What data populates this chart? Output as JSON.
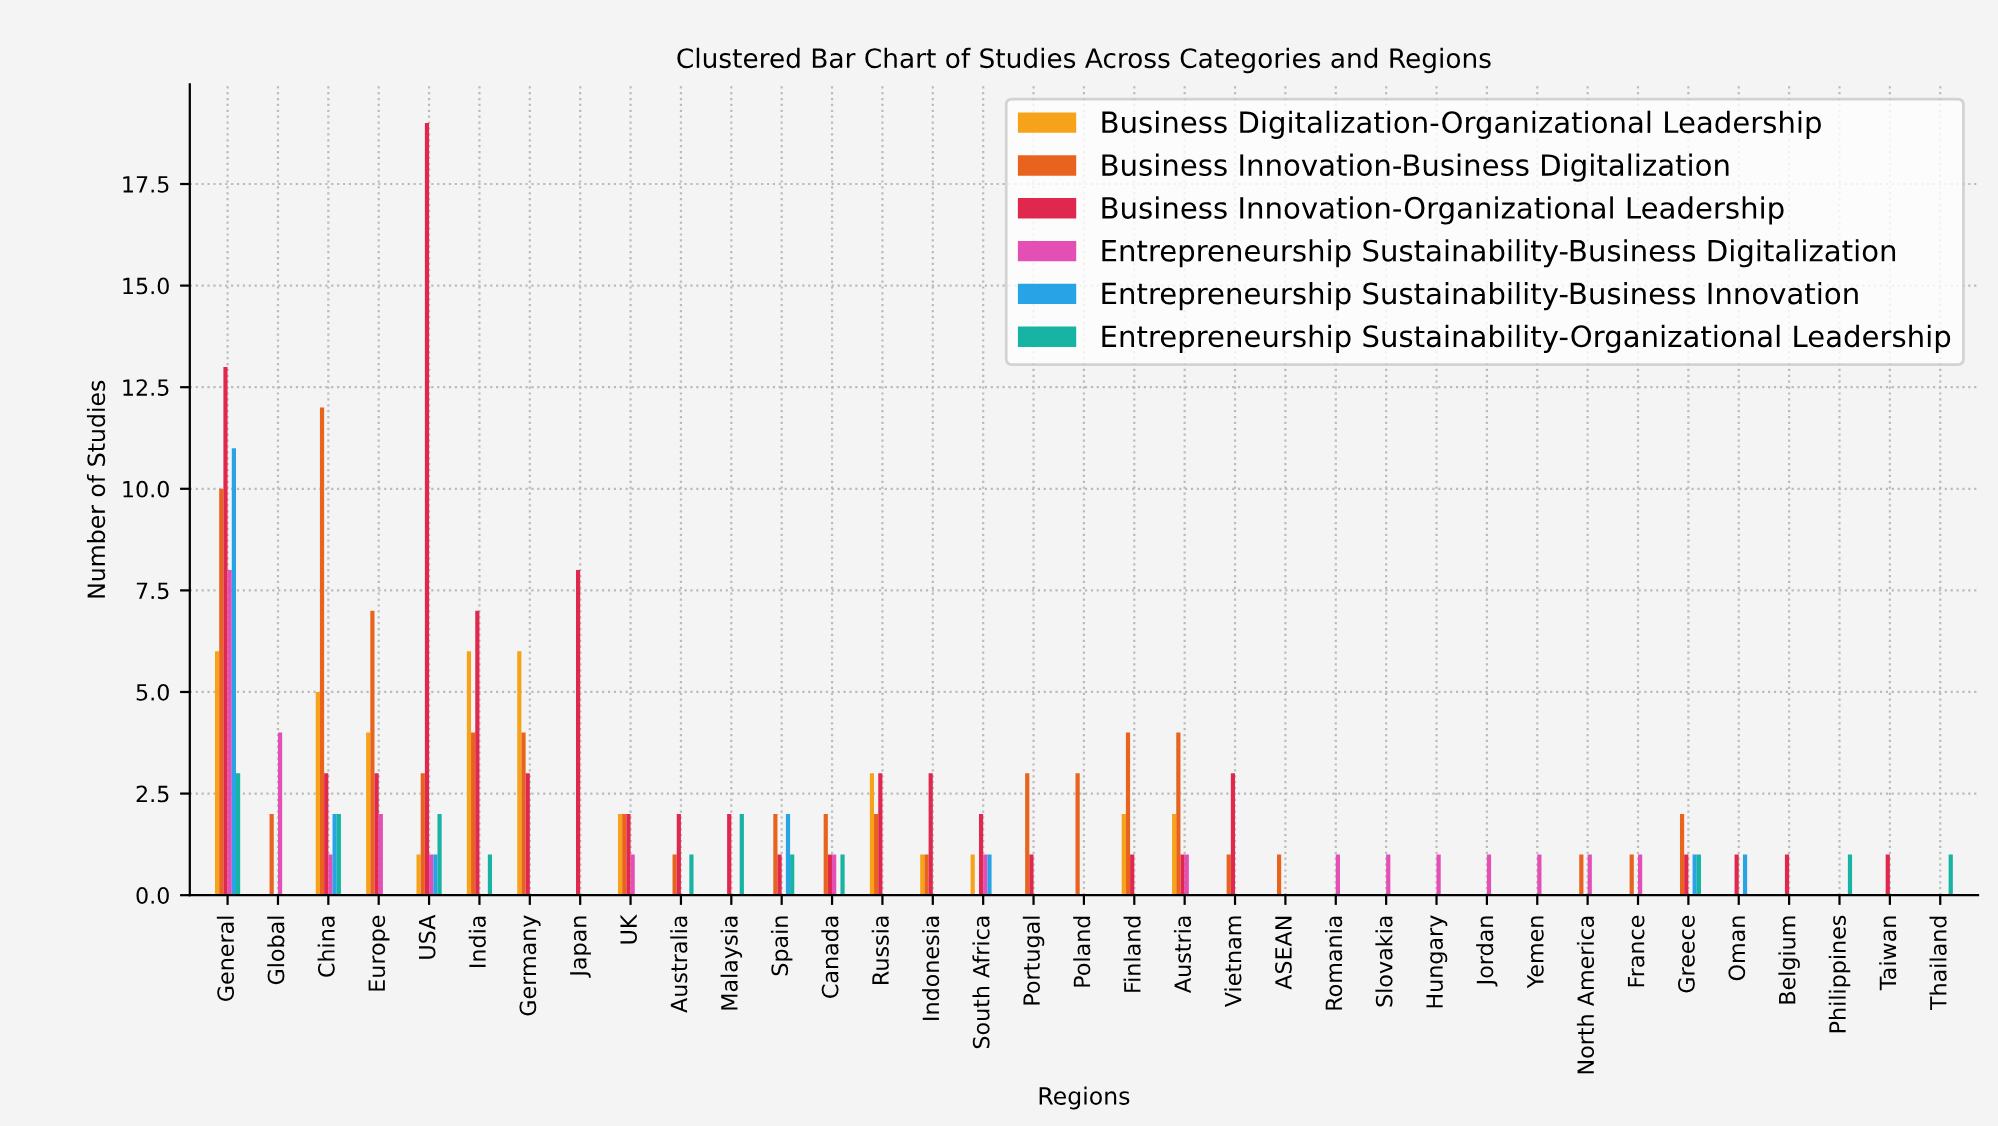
{
  "chart_data": {
    "type": "bar",
    "title": "Clustered Bar Chart of Studies Across Categories and Regions",
    "xlabel": "Regions",
    "ylabel": "Number of Studies",
    "categories": [
      "General",
      "Global",
      "China",
      "Europe",
      "USA",
      "India",
      "Germany",
      "Japan",
      "UK",
      "Australia",
      "Malaysia",
      "Spain",
      "Canada",
      "Russia",
      "Indonesia",
      "South Africa",
      "Portugal",
      "Poland",
      "Finland",
      "Austria",
      "Vietnam",
      "ASEAN",
      "Romania",
      "Slovakia",
      "Hungary",
      "Jordan",
      "Yemen",
      "North America",
      "France",
      "Greece",
      "Oman",
      "Belgium",
      "Philippines",
      "Taiwan",
      "Thailand"
    ],
    "series": [
      {
        "name": "Business Digitalization-Organizational Leadership",
        "color": "#f6a31a",
        "values": [
          6,
          0,
          5,
          4,
          1,
          6,
          6,
          0,
          2,
          0,
          0,
          0,
          0,
          3,
          1,
          1,
          0,
          0,
          2,
          2,
          0,
          0,
          0,
          0,
          0,
          0,
          0,
          0,
          0,
          0,
          0,
          0,
          0,
          0,
          0
        ]
      },
      {
        "name": "Business Innovation-Business Digitalization",
        "color": "#e8631e",
        "values": [
          10,
          2,
          12,
          7,
          3,
          4,
          4,
          0,
          2,
          1,
          0,
          2,
          2,
          2,
          1,
          0,
          3,
          3,
          4,
          4,
          1,
          1,
          0,
          0,
          0,
          0,
          0,
          1,
          1,
          2,
          0,
          0,
          0,
          0,
          0
        ]
      },
      {
        "name": "Business Innovation-Organizational Leadership",
        "color": "#e0284f",
        "values": [
          13,
          0,
          3,
          3,
          19,
          7,
          3,
          8,
          2,
          2,
          2,
          1,
          1,
          3,
          3,
          2,
          1,
          0,
          1,
          1,
          3,
          0,
          0,
          0,
          0,
          0,
          0,
          0,
          0,
          1,
          1,
          1,
          0,
          1,
          0
        ]
      },
      {
        "name": "Entrepreneurship Sustainability-Business Digitalization",
        "color": "#e34fb4",
        "values": [
          8,
          4,
          1,
          2,
          1,
          0,
          0,
          0,
          1,
          0,
          0,
          0,
          1,
          0,
          0,
          1,
          0,
          0,
          0,
          1,
          0,
          0,
          1,
          1,
          1,
          1,
          1,
          1,
          1,
          0,
          0,
          0,
          0,
          0,
          0
        ]
      },
      {
        "name": "Entrepreneurship Sustainability-Business Innovation",
        "color": "#27a3e6",
        "values": [
          11,
          0,
          2,
          0,
          1,
          0,
          0,
          0,
          0,
          0,
          0,
          2,
          0,
          0,
          0,
          1,
          0,
          0,
          0,
          0,
          0,
          0,
          0,
          0,
          0,
          0,
          0,
          0,
          0,
          1,
          1,
          0,
          0,
          0,
          0
        ]
      },
      {
        "name": "Entrepreneurship Sustainability-Organizational Leadership",
        "color": "#17b3a3",
        "values": [
          3,
          0,
          2,
          0,
          2,
          1,
          0,
          0,
          0,
          1,
          2,
          1,
          1,
          0,
          0,
          0,
          0,
          0,
          0,
          0,
          0,
          0,
          0,
          0,
          0,
          0,
          0,
          0,
          0,
          1,
          0,
          0,
          1,
          0,
          1
        ]
      }
    ],
    "ylim": [
      0,
      19.95
    ],
    "yticks": [
      {
        "value": 0,
        "label": "0.0"
      },
      {
        "value": 2.5,
        "label": "2.5"
      },
      {
        "value": 5,
        "label": "5.0"
      },
      {
        "value": 7.5,
        "label": "7.5"
      },
      {
        "value": 10,
        "label": "10.0"
      },
      {
        "value": 12.5,
        "label": "12.5"
      },
      {
        "value": 15,
        "label": "15.0"
      },
      {
        "value": 17.5,
        "label": "17.5"
      }
    ],
    "grid": true,
    "legend": "top right"
  }
}
